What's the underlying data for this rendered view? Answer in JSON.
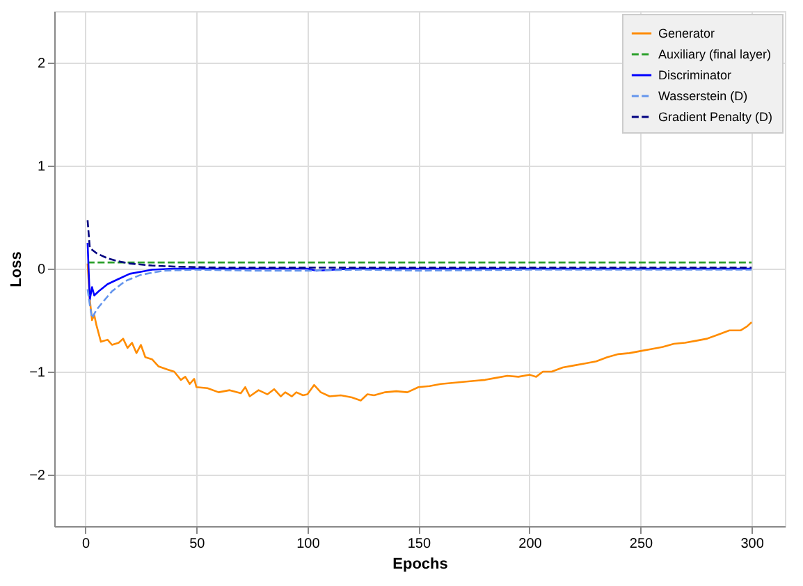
{
  "chart_data": {
    "type": "line",
    "xlabel": "Epochs",
    "ylabel": "Loss",
    "xlim": [
      -14,
      315
    ],
    "ylim": [
      -2.5,
      2.5
    ],
    "xticks": [
      0,
      50,
      100,
      150,
      200,
      250,
      300
    ],
    "yticks": [
      {
        "value": -2,
        "label": "−2"
      },
      {
        "value": -1,
        "label": "−1"
      },
      0,
      1,
      2
    ],
    "grid": true,
    "legend": "top right",
    "marker": "none",
    "series": [
      {
        "name": "Generator",
        "color": "#ff8c00",
        "line_style": "solid",
        "x": [
          1,
          2,
          3,
          4,
          5,
          7,
          10,
          12,
          15,
          17,
          19,
          21,
          23,
          25,
          27,
          30,
          33,
          37,
          40,
          43,
          45,
          47,
          49,
          50,
          55,
          60,
          65,
          70,
          72,
          74,
          78,
          82,
          85,
          88,
          90,
          93,
          95,
          98,
          100,
          103,
          106,
          110,
          115,
          120,
          124,
          127,
          130,
          135,
          140,
          145,
          150,
          155,
          160,
          165,
          170,
          175,
          180,
          185,
          190,
          195,
          200,
          203,
          206,
          210,
          215,
          220,
          225,
          230,
          235,
          240,
          245,
          250,
          255,
          260,
          265,
          270,
          275,
          280,
          285,
          290,
          295,
          298,
          300
        ],
        "values": [
          0.05,
          -0.3,
          -0.5,
          -0.45,
          -0.55,
          -0.71,
          -0.69,
          -0.74,
          -0.72,
          -0.68,
          -0.77,
          -0.72,
          -0.82,
          -0.74,
          -0.86,
          -0.88,
          -0.95,
          -0.98,
          -1.0,
          -1.08,
          -1.05,
          -1.12,
          -1.07,
          -1.15,
          -1.16,
          -1.2,
          -1.18,
          -1.21,
          -1.15,
          -1.24,
          -1.18,
          -1.22,
          -1.17,
          -1.24,
          -1.2,
          -1.24,
          -1.2,
          -1.23,
          -1.22,
          -1.13,
          -1.2,
          -1.24,
          -1.23,
          -1.25,
          -1.28,
          -1.22,
          -1.23,
          -1.2,
          -1.19,
          -1.2,
          -1.15,
          -1.14,
          -1.12,
          -1.11,
          -1.1,
          -1.09,
          -1.08,
          -1.06,
          -1.04,
          -1.05,
          -1.03,
          -1.05,
          -1.0,
          -1.0,
          -0.96,
          -0.94,
          -0.92,
          -0.9,
          -0.86,
          -0.83,
          -0.82,
          -0.8,
          -0.78,
          -0.76,
          -0.73,
          -0.72,
          -0.7,
          -0.68,
          -0.64,
          -0.6,
          -0.6,
          -0.56,
          -0.52
        ]
      },
      {
        "name": "Auxiliary (final layer)",
        "color": "#2ca02c",
        "line_style": "dashed",
        "x": [
          1,
          300
        ],
        "values": [
          0.06,
          0.06
        ]
      },
      {
        "name": "Discriminator",
        "color": "#0000ff",
        "line_style": "solid",
        "x": [
          1,
          2,
          3,
          4,
          6,
          10,
          15,
          20,
          25,
          30,
          40,
          60,
          80,
          100,
          104,
          120,
          140,
          160,
          180,
          200,
          220,
          240,
          260,
          280,
          300
        ],
        "values": [
          0.25,
          -0.3,
          -0.18,
          -0.26,
          -0.22,
          -0.15,
          -0.1,
          -0.05,
          -0.03,
          -0.01,
          0,
          0,
          0,
          0,
          -0.02,
          0,
          0,
          0,
          0,
          0,
          0,
          0,
          0,
          0,
          0
        ]
      },
      {
        "name": "Wasserstein (D)",
        "color": "#6495ed",
        "line_style": "dashed",
        "x": [
          1,
          2,
          3,
          5,
          8,
          12,
          18,
          25,
          35,
          50,
          75,
          100,
          125,
          150,
          200,
          250,
          300
        ],
        "values": [
          -0.2,
          -0.35,
          -0.48,
          -0.4,
          -0.32,
          -0.22,
          -0.12,
          -0.06,
          -0.02,
          -0.01,
          -0.02,
          -0.02,
          -0.01,
          -0.02,
          -0.01,
          -0.01,
          -0.01
        ]
      },
      {
        "name": "Gradient Penalty (D)",
        "color": "#000080",
        "line_style": "dashed",
        "x": [
          1,
          2,
          5,
          10,
          15,
          20,
          30,
          40,
          60,
          300
        ],
        "values": [
          0.47,
          0.2,
          0.15,
          0.1,
          0.07,
          0.05,
          0.03,
          0.02,
          0.01,
          0.01
        ]
      }
    ]
  }
}
